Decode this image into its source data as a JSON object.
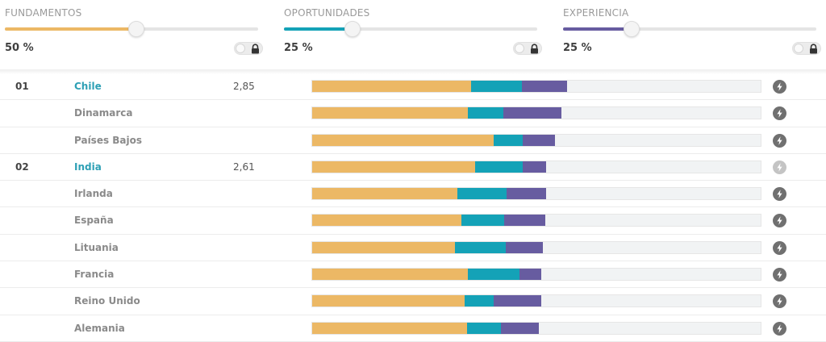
{
  "colors": {
    "fundamentos": "#ecb865",
    "oportunidades": "#14a2b7",
    "experiencia": "#675ca0",
    "track": "#e4e4e4"
  },
  "sliders": [
    {
      "title": "FUNDAMENTOS",
      "percent_label": "50 %",
      "value": 0.52,
      "color": "#ecb865",
      "lock_icon": "lock-icon"
    },
    {
      "title": "OPORTUNIDADES",
      "percent_label": "25 %",
      "value": 0.27,
      "color": "#14a2b7",
      "lock_icon": "lock-icon"
    },
    {
      "title": "EXPERIENCIA",
      "percent_label": "25 %",
      "value": 0.27,
      "color": "#675ca0",
      "lock_icon": "lock-icon"
    }
  ],
  "rows": [
    {
      "rank": "01",
      "country": "Chile",
      "lead": true,
      "score": "2,85",
      "segments": [
        0.355,
        0.112,
        0.102
      ],
      "bolt_enabled": true
    },
    {
      "rank": "",
      "country": "Dinamarca",
      "lead": false,
      "score": "",
      "segments": [
        0.347,
        0.079,
        0.129
      ],
      "bolt_enabled": true
    },
    {
      "rank": "",
      "country": "Países Bajos",
      "lead": false,
      "score": "",
      "segments": [
        0.405,
        0.065,
        0.072
      ],
      "bolt_enabled": true
    },
    {
      "rank": "02",
      "country": "India",
      "lead": true,
      "score": "2,61",
      "segments": [
        0.364,
        0.106,
        0.052
      ],
      "bolt_enabled": false
    },
    {
      "rank": "",
      "country": "Irlanda",
      "lead": false,
      "score": "",
      "segments": [
        0.323,
        0.111,
        0.087
      ],
      "bolt_enabled": true
    },
    {
      "rank": "",
      "country": "España",
      "lead": false,
      "score": "",
      "segments": [
        0.333,
        0.095,
        0.091
      ],
      "bolt_enabled": true
    },
    {
      "rank": "",
      "country": "Lituania",
      "lead": false,
      "score": "",
      "segments": [
        0.318,
        0.113,
        0.084
      ],
      "bolt_enabled": true
    },
    {
      "rank": "",
      "country": "Francia",
      "lead": false,
      "score": "",
      "segments": [
        0.348,
        0.115,
        0.047
      ],
      "bolt_enabled": true
    },
    {
      "rank": "",
      "country": "Reino Unido",
      "lead": false,
      "score": "",
      "segments": [
        0.34,
        0.065,
        0.105
      ],
      "bolt_enabled": true
    },
    {
      "rank": "",
      "country": "Alemania",
      "lead": false,
      "score": "",
      "segments": [
        0.345,
        0.075,
        0.086
      ],
      "bolt_enabled": true
    }
  ]
}
